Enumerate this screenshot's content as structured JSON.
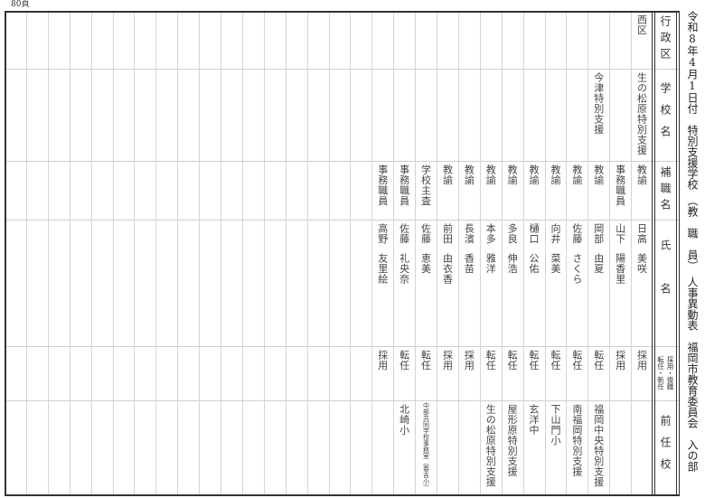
{
  "page_number": "80頁",
  "title": "令和8年4月1日付　特別支援学校　（教　職　員）　人事異動表　福岡市教育委員会　入の部",
  "headers": {
    "district": "行政区",
    "school": "学校名",
    "position": "補職名",
    "name": "氏名",
    "type_line1": "採用・復職",
    "type_line2": "転任・新任",
    "previous_school": "前任校"
  },
  "rows": [
    {
      "district": "西区",
      "school": "生の松原特別支援",
      "position": "教諭",
      "surname": "日高",
      "given": "美咲",
      "type": "採用",
      "previous": ""
    },
    {
      "district": "",
      "school": "",
      "position": "事務職員",
      "surname": "山下",
      "given": "陽香里",
      "type": "採用",
      "previous": ""
    },
    {
      "district": "",
      "school": "今津特別支援",
      "position": "教諭",
      "surname": "岡部",
      "given": "由夏",
      "type": "転任",
      "previous": "福岡中央特別支援"
    },
    {
      "district": "",
      "school": "",
      "position": "教諭",
      "surname": "佐藤",
      "given": "さくら",
      "type": "転任",
      "previous": "南福岡特別支援"
    },
    {
      "district": "",
      "school": "",
      "position": "教諭",
      "surname": "向井",
      "given": "菜美",
      "type": "転任",
      "previous": "下山門小"
    },
    {
      "district": "",
      "school": "",
      "position": "教諭",
      "surname": "樋口",
      "given": "公佑",
      "type": "転任",
      "previous": "玄洋中"
    },
    {
      "district": "",
      "school": "",
      "position": "教諭",
      "surname": "多良",
      "given": "伸浩",
      "type": "転任",
      "previous": "屋形原特別支援"
    },
    {
      "district": "",
      "school": "",
      "position": "教諭",
      "surname": "本多",
      "given": "雅洋",
      "type": "転任",
      "previous": "生の松原特別支援"
    },
    {
      "district": "",
      "school": "",
      "position": "教諭",
      "surname": "長濱",
      "given": "香苗",
      "type": "採用",
      "previous": ""
    },
    {
      "district": "",
      "school": "",
      "position": "教諭",
      "surname": "前田",
      "given": "由衣香",
      "type": "採用",
      "previous": ""
    },
    {
      "district": "",
      "school": "",
      "position": "学校主査",
      "surname": "佐藤",
      "given": "恵美",
      "type": "転任",
      "previous": "中部共同学校事務室（春吉小）",
      "previous_small": true
    },
    {
      "district": "",
      "school": "",
      "position": "事務職員",
      "surname": "佐藤",
      "given": "礼央奈",
      "type": "転任",
      "previous": "北崎小"
    },
    {
      "district": "",
      "school": "",
      "position": "事務職員",
      "surname": "高野",
      "given": "友里絵",
      "type": "採用",
      "previous": ""
    }
  ]
}
